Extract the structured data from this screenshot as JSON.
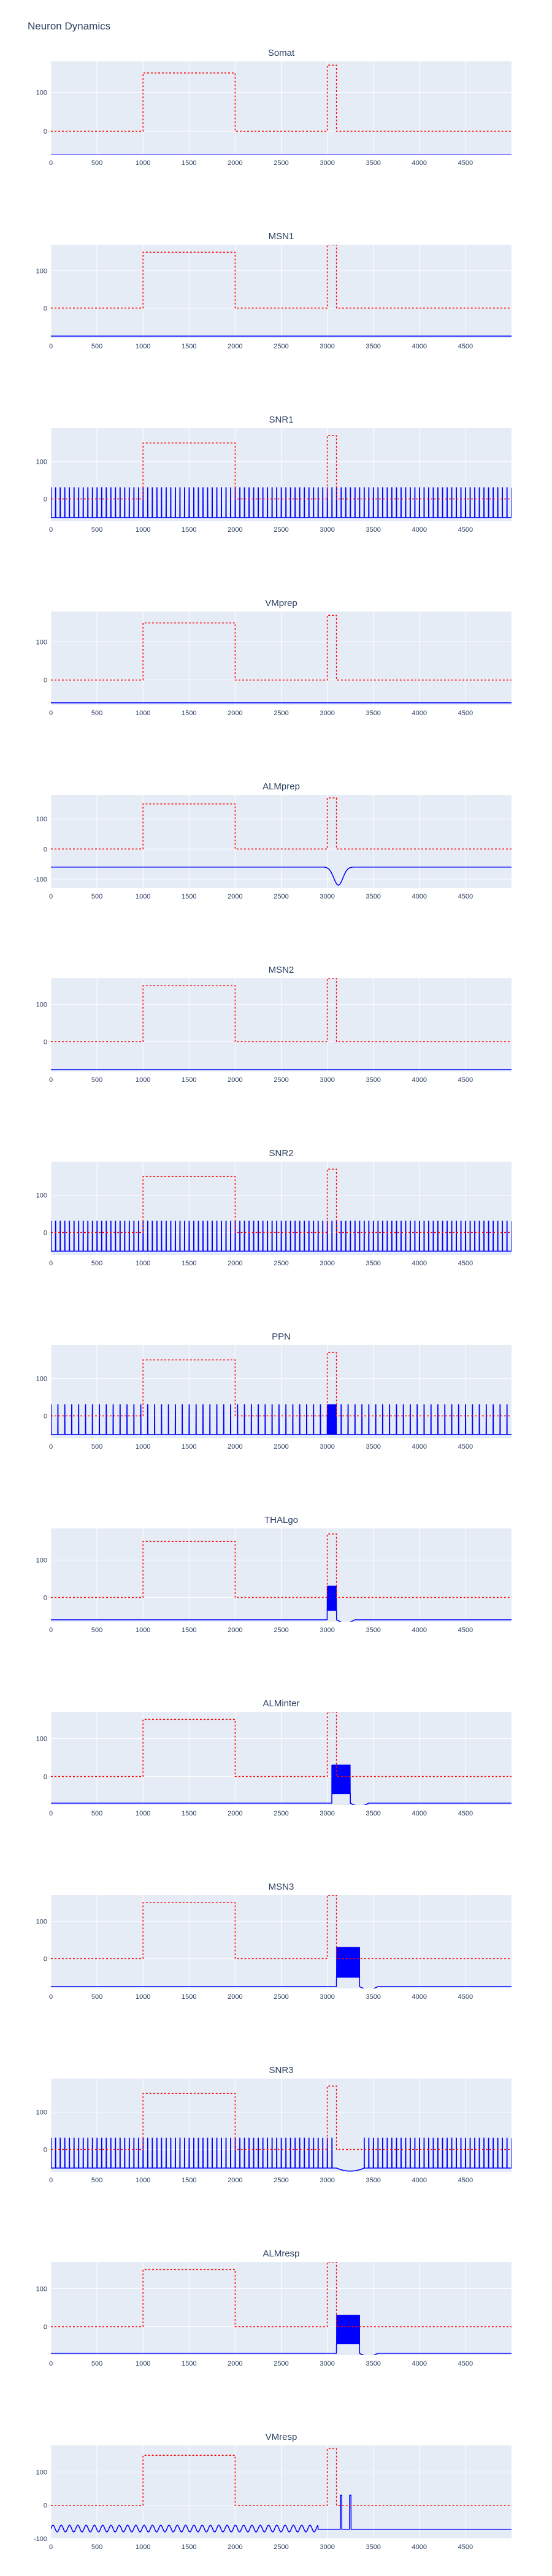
{
  "title": "Neuron Dynamics",
  "colors": {
    "plot_bg": "#e5ecf6",
    "grid": "#ffffff",
    "voltage_trace": "#0000ff",
    "stimulus_trace": "#ff0000"
  },
  "chart_data": [
    {
      "type": "line",
      "title": "Somat",
      "kind": "flat",
      "base": -60,
      "xlim": [
        0,
        5000
      ],
      "ylim": [
        -60,
        180
      ],
      "xticks": [
        0,
        500,
        1000,
        1500,
        2000,
        2500,
        3000,
        3500,
        4000,
        4500
      ],
      "yticks": [
        100,
        0
      ],
      "grid": true,
      "stimulus": {
        "x": [
          0,
          1000,
          1000,
          2000,
          2000,
          3000,
          3000,
          3100,
          3100,
          5000
        ],
        "y": [
          0,
          0,
          150,
          150,
          0,
          0,
          170,
          170,
          0,
          0
        ]
      }
    },
    {
      "type": "line",
      "title": "MSN1",
      "kind": "flat",
      "base": -75,
      "xlim": [
        0,
        5000
      ],
      "ylim": [
        -80,
        170
      ],
      "xticks": [
        0,
        500,
        1000,
        1500,
        2000,
        2500,
        3000,
        3500,
        4000,
        4500
      ],
      "yticks": [
        100,
        0
      ],
      "grid": true,
      "stimulus": {
        "x": [
          0,
          1000,
          1000,
          2000,
          2000,
          3000,
          3000,
          3100,
          3100,
          5000
        ],
        "y": [
          0,
          0,
          150,
          150,
          0,
          0,
          170,
          170,
          0,
          0
        ]
      }
    },
    {
      "type": "line",
      "title": "SNR1",
      "kind": "spiking",
      "base": -50,
      "peak": 30,
      "spike_period": 50,
      "xlim": [
        0,
        5000
      ],
      "ylim": [
        -60,
        190
      ],
      "xticks": [
        0,
        500,
        1000,
        1500,
        2000,
        2500,
        3000,
        3500,
        4000,
        4500
      ],
      "yticks": [
        100,
        0
      ],
      "grid": true,
      "stimulus": {
        "x": [
          0,
          1000,
          1000,
          2000,
          2000,
          3000,
          3000,
          3100,
          3100,
          5000
        ],
        "y": [
          0,
          0,
          150,
          150,
          0,
          0,
          170,
          170,
          0,
          0
        ]
      }
    },
    {
      "type": "line",
      "title": "VMprep",
      "kind": "flat",
      "base": -60,
      "xlim": [
        0,
        5000
      ],
      "ylim": [
        -65,
        180
      ],
      "xticks": [
        0,
        500,
        1000,
        1500,
        2000,
        2500,
        3000,
        3500,
        4000,
        4500
      ],
      "yticks": [
        100,
        0
      ],
      "grid": true,
      "stimulus": {
        "x": [
          0,
          1000,
          1000,
          2000,
          2000,
          3000,
          3000,
          3100,
          3100,
          5000
        ],
        "y": [
          0,
          0,
          150,
          150,
          0,
          0,
          170,
          170,
          0,
          0
        ]
      }
    },
    {
      "type": "line",
      "title": "ALMprep",
      "kind": "dip",
      "base": -60,
      "dip_min": -120,
      "dip_center": 3120,
      "dip_width": 70,
      "xlim": [
        0,
        5000
      ],
      "ylim": [
        -130,
        180
      ],
      "xticks": [
        0,
        500,
        1000,
        1500,
        2000,
        2500,
        3000,
        3500,
        4000,
        4500
      ],
      "yticks": [
        100,
        0,
        -100
      ],
      "grid": true,
      "stimulus": {
        "x": [
          0,
          1000,
          1000,
          2000,
          2000,
          3000,
          3000,
          3100,
          3100,
          5000
        ],
        "y": [
          0,
          0,
          150,
          150,
          0,
          0,
          170,
          170,
          0,
          0
        ]
      }
    },
    {
      "type": "line",
      "title": "MSN2",
      "kind": "flat",
      "base": -75,
      "xlim": [
        0,
        5000
      ],
      "ylim": [
        -80,
        170
      ],
      "xticks": [
        0,
        500,
        1000,
        1500,
        2000,
        2500,
        3000,
        3500,
        4000,
        4500
      ],
      "yticks": [
        100,
        0
      ],
      "grid": true,
      "stimulus": {
        "x": [
          0,
          1000,
          1000,
          2000,
          2000,
          3000,
          3000,
          3100,
          3100,
          5000
        ],
        "y": [
          0,
          0,
          150,
          150,
          0,
          0,
          170,
          170,
          0,
          0
        ]
      }
    },
    {
      "type": "line",
      "title": "SNR2",
      "kind": "spiking",
      "base": -50,
      "peak": 30,
      "spike_period": 50,
      "xlim": [
        0,
        5000
      ],
      "ylim": [
        -60,
        190
      ],
      "xticks": [
        0,
        500,
        1000,
        1500,
        2000,
        2500,
        3000,
        3500,
        4000,
        4500
      ],
      "yticks": [
        100,
        0
      ],
      "grid": true,
      "stimulus": {
        "x": [
          0,
          1000,
          1000,
          2000,
          2000,
          3000,
          3000,
          3100,
          3100,
          5000
        ],
        "y": [
          0,
          0,
          150,
          150,
          0,
          0,
          170,
          170,
          0,
          0
        ]
      }
    },
    {
      "type": "line",
      "title": "PPN",
      "kind": "spiking",
      "base": -50,
      "peak": 30,
      "spike_period": 75,
      "burst": [
        3000,
        3100
      ],
      "xlim": [
        0,
        5000
      ],
      "ylim": [
        -60,
        190
      ],
      "xticks": [
        0,
        500,
        1000,
        1500,
        2000,
        2500,
        3000,
        3500,
        4000,
        4500
      ],
      "yticks": [
        100,
        0
      ],
      "grid": true,
      "stimulus": {
        "x": [
          0,
          1000,
          1000,
          2000,
          2000,
          3000,
          3000,
          3100,
          3100,
          5000
        ],
        "y": [
          0,
          0,
          150,
          150,
          0,
          0,
          170,
          170,
          0,
          0
        ]
      }
    },
    {
      "type": "line",
      "title": "THALgo",
      "kind": "burst",
      "base": -60,
      "peak": 30,
      "burst": [
        3000,
        3100
      ],
      "xlim": [
        0,
        5000
      ],
      "ylim": [
        -65,
        185
      ],
      "xticks": [
        0,
        500,
        1000,
        1500,
        2000,
        2500,
        3000,
        3500,
        4000,
        4500
      ],
      "yticks": [
        100,
        0
      ],
      "grid": true,
      "stimulus": {
        "x": [
          0,
          1000,
          1000,
          2000,
          2000,
          3000,
          3000,
          3100,
          3100,
          5000
        ],
        "y": [
          0,
          0,
          150,
          150,
          0,
          0,
          170,
          170,
          0,
          0
        ]
      }
    },
    {
      "type": "line",
      "title": "ALMinter",
      "kind": "burst",
      "base": -70,
      "peak": 30,
      "burst": [
        3050,
        3250
      ],
      "xlim": [
        0,
        5000
      ],
      "ylim": [
        -75,
        170
      ],
      "xticks": [
        0,
        500,
        1000,
        1500,
        2000,
        2500,
        3000,
        3500,
        4000,
        4500
      ],
      "yticks": [
        100,
        0
      ],
      "grid": true,
      "stimulus": {
        "x": [
          0,
          1000,
          1000,
          2000,
          2000,
          3000,
          3000,
          3100,
          3100,
          5000
        ],
        "y": [
          0,
          0,
          150,
          150,
          0,
          0,
          170,
          170,
          0,
          0
        ]
      }
    },
    {
      "type": "line",
      "title": "MSN3",
      "kind": "burst",
      "base": -75,
      "peak": 30,
      "burst": [
        3100,
        3350
      ],
      "xlim": [
        0,
        5000
      ],
      "ylim": [
        -80,
        170
      ],
      "xticks": [
        0,
        500,
        1000,
        1500,
        2000,
        2500,
        3000,
        3500,
        4000,
        4500
      ],
      "yticks": [
        100,
        0
      ],
      "grid": true,
      "stimulus": {
        "x": [
          0,
          1000,
          1000,
          2000,
          2000,
          3000,
          3000,
          3100,
          3100,
          5000
        ],
        "y": [
          0,
          0,
          150,
          150,
          0,
          0,
          170,
          170,
          0,
          0
        ]
      }
    },
    {
      "type": "line",
      "title": "SNR3",
      "kind": "spiking",
      "base": -50,
      "peak": 30,
      "spike_period": 50,
      "pause": [
        3100,
        3400
      ],
      "xlim": [
        0,
        5000
      ],
      "ylim": [
        -60,
        190
      ],
      "xticks": [
        0,
        500,
        1000,
        1500,
        2000,
        2500,
        3000,
        3500,
        4000,
        4500
      ],
      "yticks": [
        100,
        0
      ],
      "grid": true,
      "stimulus": {
        "x": [
          0,
          1000,
          1000,
          2000,
          2000,
          3000,
          3000,
          3100,
          3100,
          5000
        ],
        "y": [
          0,
          0,
          150,
          150,
          0,
          0,
          170,
          170,
          0,
          0
        ]
      }
    },
    {
      "type": "line",
      "title": "ALMresp",
      "kind": "burst",
      "base": -70,
      "peak": 30,
      "burst": [
        3100,
        3350
      ],
      "xlim": [
        0,
        5000
      ],
      "ylim": [
        -75,
        170
      ],
      "xticks": [
        0,
        500,
        1000,
        1500,
        2000,
        2500,
        3000,
        3500,
        4000,
        4500
      ],
      "yticks": [
        100,
        0
      ],
      "grid": true,
      "stimulus": {
        "x": [
          0,
          1000,
          1000,
          2000,
          2000,
          3000,
          3000,
          3100,
          3100,
          5000
        ],
        "y": [
          0,
          0,
          150,
          150,
          0,
          0,
          170,
          170,
          0,
          0
        ]
      }
    },
    {
      "type": "line",
      "title": "VMresp",
      "kind": "oscillating",
      "base": -70,
      "amp": 10,
      "period": 90,
      "quiet": [
        2900,
        5000
      ],
      "spikes": [
        3150,
        3250
      ],
      "peak": 30,
      "xlim": [
        0,
        5000
      ],
      "ylim": [
        -100,
        180
      ],
      "xticks": [
        0,
        500,
        1000,
        1500,
        2000,
        2500,
        3000,
        3500,
        4000,
        4500
      ],
      "yticks": [
        100,
        0,
        -100
      ],
      "grid": true,
      "stimulus": {
        "x": [
          0,
          1000,
          1000,
          2000,
          2000,
          3000,
          3000,
          3100,
          3100,
          5000
        ],
        "y": [
          0,
          0,
          150,
          150,
          0,
          0,
          170,
          170,
          0,
          0
        ]
      }
    }
  ]
}
